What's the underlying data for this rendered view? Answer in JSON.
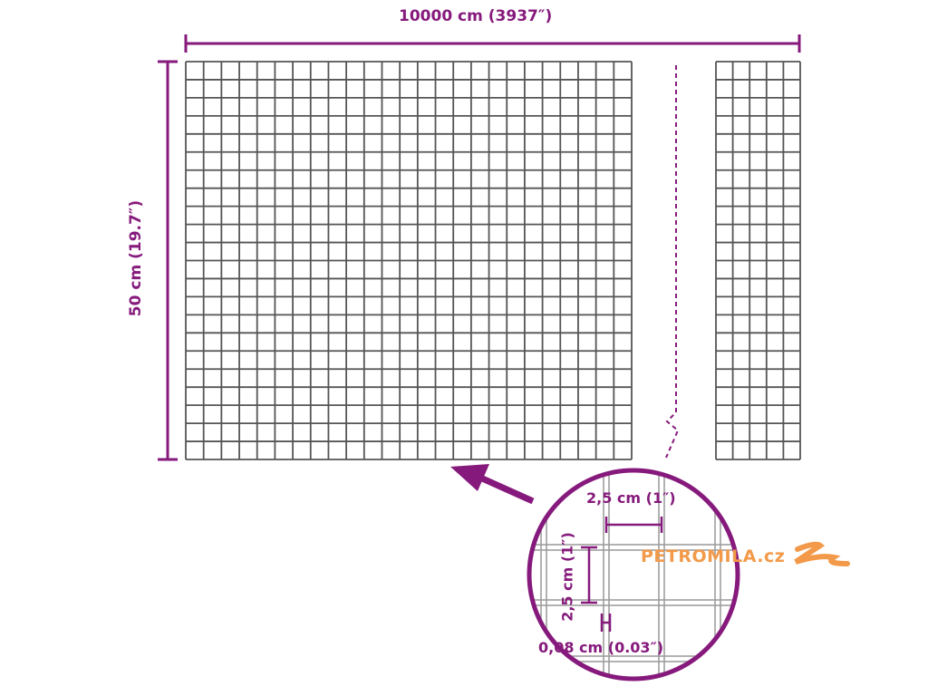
{
  "dimensions": {
    "width_label": "10000 cm (3937″)",
    "height_label": "50 cm (19.7″)"
  },
  "detail": {
    "mesh_width_label": "2,5 cm (1″)",
    "mesh_height_label": "2,5 cm (1″)",
    "wire_thickness_label": "0,08 cm (0.03″)"
  },
  "watermark": {
    "text": "PETROMILA.cz",
    "color": "#f29a4a"
  },
  "colors": {
    "accent": "#861a7c",
    "wire": "#555555"
  }
}
